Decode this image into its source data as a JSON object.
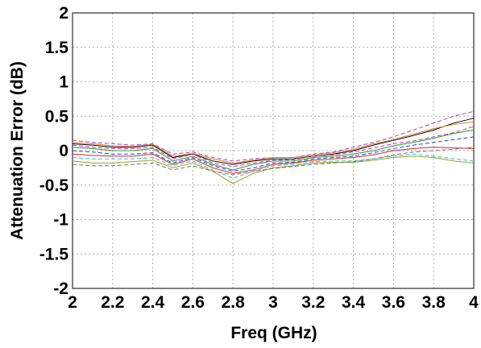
{
  "chart_data": {
    "type": "line",
    "x_label": "Freq (GHz)",
    "y_label": "Attenuation Error (dB)",
    "x": [
      2.0,
      2.1,
      2.2,
      2.3,
      2.4,
      2.5,
      2.6,
      2.7,
      2.8,
      2.9,
      3.0,
      3.1,
      3.2,
      3.3,
      3.4,
      3.5,
      3.6,
      3.7,
      3.8,
      3.9,
      4.0
    ],
    "xlim": [
      2,
      4
    ],
    "xticks": [
      2,
      2.2,
      2.4,
      2.6,
      2.8,
      3,
      3.2,
      3.4,
      3.6,
      3.8,
      4
    ],
    "ylim": [
      -2,
      2
    ],
    "yticks": [
      -2,
      -1.5,
      -1,
      -0.5,
      0,
      0.5,
      1,
      1.5,
      2
    ],
    "grid": true,
    "series": [
      {
        "color": "#a040e0",
        "dashed": true,
        "values": [
          0.15,
          0.12,
          0.1,
          0.08,
          0.1,
          -0.05,
          -0.02,
          -0.1,
          -0.15,
          -0.12,
          -0.1,
          -0.1,
          -0.05,
          -0.02,
          0.05,
          0.12,
          0.2,
          0.3,
          0.4,
          0.5,
          0.57
        ]
      },
      {
        "color": "#000000",
        "dashed": false,
        "values": [
          0.1,
          0.08,
          0.05,
          0.05,
          0.08,
          -0.1,
          -0.05,
          -0.15,
          -0.2,
          -0.15,
          -0.12,
          -0.12,
          -0.08,
          -0.05,
          0.0,
          0.08,
          0.15,
          0.22,
          0.3,
          0.4,
          0.47
        ]
      },
      {
        "color": "#20a020",
        "dashed": false,
        "values": [
          0.05,
          0.03,
          0.0,
          0.0,
          0.03,
          -0.15,
          -0.08,
          -0.2,
          -0.28,
          -0.2,
          -0.15,
          -0.15,
          -0.1,
          -0.08,
          -0.05,
          0.0,
          0.07,
          0.12,
          0.18,
          0.25,
          0.3
        ]
      },
      {
        "color": "#2040e0",
        "dashed": true,
        "values": [
          0.0,
          -0.02,
          -0.05,
          -0.05,
          -0.03,
          -0.18,
          -0.1,
          -0.22,
          -0.3,
          -0.25,
          -0.18,
          -0.17,
          -0.12,
          -0.1,
          -0.08,
          -0.03,
          0.03,
          0.08,
          0.12,
          0.16,
          0.2
        ]
      },
      {
        "color": "#e02020",
        "dashed": false,
        "values": [
          -0.05,
          -0.07,
          -0.08,
          -0.08,
          -0.05,
          -0.2,
          -0.12,
          -0.25,
          -0.33,
          -0.28,
          -0.2,
          -0.18,
          -0.14,
          -0.12,
          -0.1,
          -0.06,
          0.0,
          0.03,
          0.05,
          0.04,
          0.03
        ]
      },
      {
        "color": "#20c0d0",
        "dashed": true,
        "values": [
          -0.1,
          -0.12,
          -0.12,
          -0.12,
          -0.1,
          -0.22,
          -0.15,
          -0.28,
          -0.4,
          -0.3,
          -0.22,
          -0.2,
          -0.16,
          -0.15,
          -0.15,
          -0.12,
          -0.08,
          -0.05,
          -0.08,
          -0.12,
          -0.15
        ]
      },
      {
        "color": "#a0a020",
        "dashed": false,
        "values": [
          -0.15,
          -0.18,
          -0.18,
          -0.16,
          -0.14,
          -0.25,
          -0.18,
          -0.3,
          -0.48,
          -0.33,
          -0.25,
          -0.22,
          -0.18,
          -0.17,
          -0.17,
          -0.14,
          -0.1,
          -0.08,
          -0.1,
          -0.15,
          -0.18
        ]
      },
      {
        "color": "#e020c0",
        "dashed": true,
        "values": [
          0.08,
          0.05,
          0.03,
          0.03,
          0.05,
          -0.12,
          -0.05,
          -0.18,
          -0.23,
          -0.18,
          -0.14,
          -0.13,
          -0.08,
          -0.06,
          -0.02,
          0.04,
          0.1,
          0.14,
          0.2,
          0.26,
          0.35
        ]
      },
      {
        "color": "#707070",
        "dashed": true,
        "values": [
          -0.2,
          -0.22,
          -0.22,
          -0.2,
          -0.18,
          -0.28,
          -0.22,
          -0.3,
          -0.35,
          -0.3,
          -0.26,
          -0.23,
          -0.2,
          -0.18,
          -0.16,
          -0.12,
          -0.06,
          -0.02,
          0.0,
          0.02,
          0.05
        ]
      },
      {
        "color": "#e08020",
        "dashed": false,
        "values": [
          0.12,
          0.1,
          0.07,
          0.06,
          0.09,
          -0.08,
          -0.04,
          -0.12,
          -0.18,
          -0.14,
          -0.1,
          -0.1,
          -0.06,
          -0.03,
          0.02,
          0.1,
          0.16,
          0.24,
          0.32,
          0.38,
          0.42
        ]
      }
    ]
  }
}
